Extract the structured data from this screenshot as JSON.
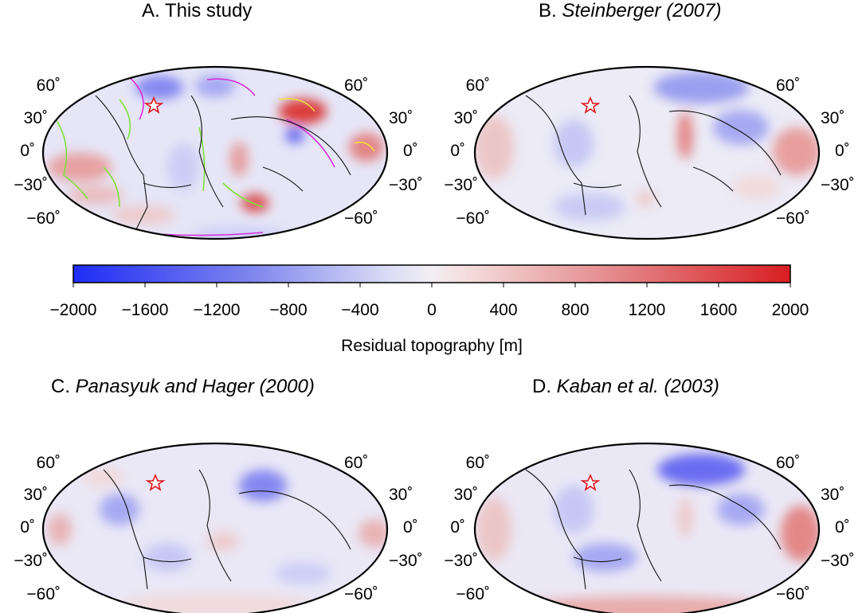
{
  "panels": [
    {
      "id": "A",
      "label": "A.",
      "title_plain": "This study",
      "title_cite": ""
    },
    {
      "id": "B",
      "label": "B.",
      "title_plain": "",
      "title_cite": "Steinberger (2007)"
    },
    {
      "id": "C",
      "label": "C.",
      "title_plain": "",
      "title_cite": "Panasyuk and Hager (2000)"
    },
    {
      "id": "D",
      "label": "D.",
      "title_plain": "",
      "title_cite": "Kaban et al. (2003)"
    }
  ],
  "lat_labels": {
    "n60": "60˚",
    "n30": "30˚",
    "eq": "0˚",
    "s30": "−30˚",
    "s60": "−60˚"
  },
  "colorbar": {
    "title": "Residual topography [m]",
    "ticks": [
      "−2000",
      "−1600",
      "−1200",
      "−800",
      "−400",
      "0",
      "400",
      "800",
      "1200",
      "1600",
      "2000"
    ],
    "min": -2000,
    "max": 2000,
    "low_color": "#1f2cf5",
    "mid_color": "#f2eef2",
    "high_color": "#d81e22"
  },
  "marker": {
    "symbol": "star",
    "color": "#e0161b"
  },
  "overlay_colors": {
    "green": "#7de23a",
    "magenta": "#d52fd6",
    "yellow": "#f0e23a"
  }
}
